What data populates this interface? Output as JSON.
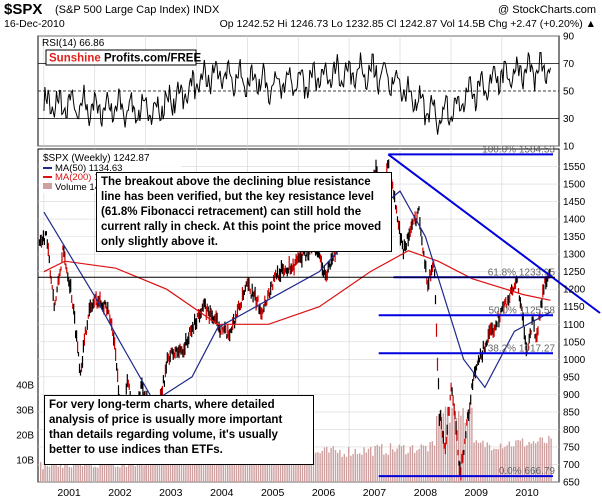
{
  "header": {
    "symbol": "$SPX",
    "name": "(S&P 500 Large Cap Index) INDX",
    "brand": "@ StockCharts.com",
    "date": "16-Dec-2010",
    "quote": "Op 1242.52  Hi 1246.73  Lo 1232.85  Cl 1242.87  Vol 14.5B  Chg +2.47 (+0.20%) ▲"
  },
  "rsi": {
    "label": "RSI(14) 66.86",
    "watermark_left": "Sunshine",
    "watermark_right": "Profits.com/FREE",
    "ticks": [
      "90",
      "70",
      "50",
      "30",
      "10"
    ]
  },
  "main": {
    "legend_price": "$SPX (Weekly) 1242.87",
    "legend_ma50": "MA(50) 1134.63",
    "legend_ma200": "MA(200) 1168.39",
    "legend_volume": "Volume 14",
    "volume_ticks": [
      "40B",
      "30B",
      "20B",
      "10B"
    ],
    "fib_100": "100.0% 1584.53",
    "fib_618": "61.8% 1233.95",
    "fib_500": "50.0% 1125.58",
    "fib_382": "38.2% 1017.27",
    "fib_0": "0.0% 666.79",
    "note_top": "The breakout above the declining blue resistance\nline has been verified, but the key resistance level\n(61.8% Fibonacci retracement) can still hold the\ncurrent rally in check. At this point the price moved\nonly slightly above it.",
    "note_bottom": "For very long-term charts, where detailed\nanalysis of price is usually more important\nthan details regarding volume, it's usually\nbetter to use indices than ETFs."
  },
  "colors": {
    "price": "#000000",
    "ma50": "#1f2a8c",
    "ma200": "#dd1111",
    "fib": "#0000dd",
    "volume": "#cfa0a0",
    "grid": "#d8d8d8",
    "brand_red": "#e0201a"
  },
  "chart_data": [
    {
      "type": "line",
      "title": "RSI(14) 66.86",
      "ylim": [
        10,
        90
      ],
      "reference_levels": [
        30,
        50,
        70
      ],
      "x": [
        "2001",
        "2002",
        "2003",
        "2004",
        "2005",
        "2006",
        "2007",
        "2008",
        "2009",
        "2010"
      ],
      "series": [
        {
          "name": "RSI(14)",
          "values": [
            40,
            38,
            36,
            62,
            55,
            60,
            64,
            30,
            60,
            66.86
          ]
        }
      ]
    },
    {
      "type": "line",
      "title": "$SPX (Weekly) 1242.87",
      "ylim": [
        650,
        1600
      ],
      "x": [
        "2001",
        "2002",
        "2003",
        "2004",
        "2005",
        "2006",
        "2007",
        "2008",
        "2009",
        "2010"
      ],
      "yticks": [
        650,
        700,
        750,
        800,
        850,
        900,
        950,
        1000,
        1050,
        1100,
        1150,
        1200,
        1250,
        1300,
        1350,
        1400,
        1450,
        1500,
        1550
      ],
      "series": [
        {
          "name": "$SPX (Weekly)",
          "points": [
            [
              "2000-12-01",
              1320
            ],
            [
              "2001-01-15",
              1360
            ],
            [
              "2001-03-20",
              1150
            ],
            [
              "2001-05-20",
              1310
            ],
            [
              "2001-07-15",
              1200
            ],
            [
              "2001-09-21",
              965
            ],
            [
              "2001-11-15",
              1130
            ],
            [
              "2002-01-05",
              1170
            ],
            [
              "2002-03-15",
              1160
            ],
            [
              "2002-05-15",
              1080
            ],
            [
              "2002-07-23",
              780
            ],
            [
              "2002-08-25",
              960
            ],
            [
              "2002-10-09",
              777
            ],
            [
              "2002-12-01",
              935
            ],
            [
              "2003-03-11",
              800
            ],
            [
              "2003-06-15",
              1010
            ],
            [
              "2003-10-01",
              1030
            ],
            [
              "2004-02-15",
              1155
            ],
            [
              "2004-08-15",
              1065
            ],
            [
              "2005-01-01",
              1210
            ],
            [
              "2005-04-15",
              1140
            ],
            [
              "2005-08-01",
              1245
            ],
            [
              "2005-12-01",
              1270
            ],
            [
              "2006-05-01",
              1325
            ],
            [
              "2006-07-15",
              1235
            ],
            [
              "2007-02-20",
              1460
            ],
            [
              "2007-03-15",
              1375
            ],
            [
              "2007-07-15",
              1555
            ],
            [
              "2007-08-15",
              1405
            ],
            [
              "2007-10-09",
              1565
            ],
            [
              "2008-01-20",
              1310
            ],
            [
              "2008-05-15",
              1425
            ],
            [
              "2008-07-15",
              1215
            ],
            [
              "2008-09-01",
              1280
            ],
            [
              "2008-10-10",
              840
            ],
            [
              "2008-11-20",
              752
            ],
            [
              "2009-01-05",
              930
            ],
            [
              "2009-03-09",
              676
            ],
            [
              "2009-06-10",
              945
            ],
            [
              "2009-09-01",
              1040
            ],
            [
              "2010-01-15",
              1150
            ],
            [
              "2010-04-23",
              1218
            ],
            [
              "2010-07-02",
              1022
            ],
            [
              "2010-08-15",
              1125
            ],
            [
              "2010-09-01",
              1050
            ],
            [
              "2010-11-05",
              1225
            ],
            [
              "2010-12-16",
              1242.87
            ]
          ]
        },
        {
          "name": "MA(50)",
          "points": [
            [
              "2001-01-01",
              1420
            ],
            [
              "2002-01-01",
              1180
            ],
            [
              "2002-07-01",
              1050
            ],
            [
              "2003-03-01",
              880
            ],
            [
              "2003-12-01",
              950
            ],
            [
              "2004-06-01",
              1090
            ],
            [
              "2005-06-01",
              1170
            ],
            [
              "2006-06-01",
              1250
            ],
            [
              "2007-06-01",
              1410
            ],
            [
              "2008-01-01",
              1480
            ],
            [
              "2008-07-01",
              1350
            ],
            [
              "2009-04-01",
              1000
            ],
            [
              "2009-09-01",
              920
            ],
            [
              "2010-04-01",
              1080
            ],
            [
              "2010-12-16",
              1134.63
            ]
          ]
        },
        {
          "name": "MA(200)",
          "points": [
            [
              "2001-01-01",
              1250
            ],
            [
              "2001-06-01",
              1280
            ],
            [
              "2002-06-01",
              1260
            ],
            [
              "2003-06-01",
              1200
            ],
            [
              "2004-06-01",
              1100
            ],
            [
              "2005-06-01",
              1100
            ],
            [
              "2006-06-01",
              1150
            ],
            [
              "2007-06-01",
              1250
            ],
            [
              "2008-03-01",
              1310
            ],
            [
              "2008-10-01",
              1280
            ],
            [
              "2009-06-01",
              1230
            ],
            [
              "2010-06-01",
              1185
            ],
            [
              "2010-12-16",
              1168.39
            ]
          ]
        }
      ],
      "fibonacci": [
        {
          "label": "100.0% 1584.53",
          "value": 1584.53
        },
        {
          "label": "61.8% 1233.95",
          "value": 1233.95
        },
        {
          "label": "50.0% 1125.58",
          "value": 1125.58
        },
        {
          "label": "38.2% 1017.27",
          "value": 1017.27
        },
        {
          "label": "0.0% 666.79",
          "value": 666.79
        }
      ],
      "trendline": {
        "from": [
          "2007-10-09",
          1584.53
        ],
        "to": [
          "2011-02-15",
          1085
        ]
      }
    }
  ]
}
